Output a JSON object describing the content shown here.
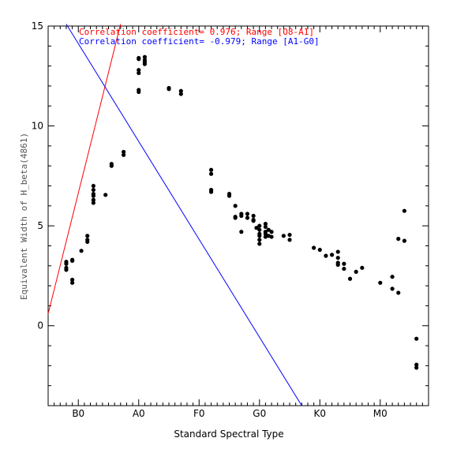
{
  "chart_data": {
    "type": "scatter",
    "xlabel": "Standard Spectral Type",
    "ylabel": "Equivalent Width of H_beta(4861)",
    "x_ticks": [
      "B0",
      "A0",
      "F0",
      "G0",
      "K0",
      "M0"
    ],
    "y_ticks": [
      "0",
      "5",
      "10",
      "15"
    ],
    "xlim": [
      -0.5,
      5.8
    ],
    "ylim": [
      -4,
      15
    ],
    "grid": false,
    "annotations": [
      {
        "text": "Correlation coefficient= 0.976; Range [O8-A1]",
        "color": "#ff0000"
      },
      {
        "text": "Correlation coefficient= -0.979; Range [A1-G0]",
        "color": "#0000ff"
      }
    ],
    "fit_lines": [
      {
        "color": "#ff0000",
        "points": [
          [
            -0.5,
            0.6
          ],
          [
            0.7,
            15.1
          ]
        ]
      },
      {
        "color": "#0000ff",
        "points": [
          [
            -0.2,
            15.1
          ],
          [
            3.7,
            -4.0
          ]
        ]
      }
    ],
    "points": [
      [
        -0.2,
        3.2
      ],
      [
        -0.2,
        3.1
      ],
      [
        -0.2,
        2.9
      ],
      [
        -0.2,
        2.8
      ],
      [
        -0.1,
        3.3
      ],
      [
        -0.1,
        3.25
      ],
      [
        -0.1,
        2.3
      ],
      [
        -0.1,
        2.15
      ],
      [
        0.05,
        3.75
      ],
      [
        0.15,
        4.5
      ],
      [
        0.15,
        4.3
      ],
      [
        0.15,
        4.2
      ],
      [
        0.25,
        7.0
      ],
      [
        0.25,
        6.8
      ],
      [
        0.25,
        6.6
      ],
      [
        0.25,
        6.5
      ],
      [
        0.25,
        6.3
      ],
      [
        0.25,
        6.15
      ],
      [
        0.45,
        6.55
      ],
      [
        0.55,
        8.1
      ],
      [
        0.55,
        8.0
      ],
      [
        0.75,
        8.7
      ],
      [
        0.75,
        8.55
      ],
      [
        1.0,
        13.4
      ],
      [
        1.0,
        13.35
      ],
      [
        1.0,
        12.8
      ],
      [
        1.0,
        12.65
      ],
      [
        1.0,
        11.8
      ],
      [
        1.0,
        11.7
      ],
      [
        1.1,
        13.45
      ],
      [
        1.1,
        13.3
      ],
      [
        1.1,
        13.2
      ],
      [
        1.1,
        13.1
      ],
      [
        1.5,
        11.9
      ],
      [
        1.5,
        11.85
      ],
      [
        1.7,
        11.75
      ],
      [
        1.7,
        11.6
      ],
      [
        2.2,
        7.8
      ],
      [
        2.2,
        7.6
      ],
      [
        2.2,
        6.8
      ],
      [
        2.2,
        6.7
      ],
      [
        2.5,
        6.6
      ],
      [
        2.5,
        6.5
      ],
      [
        2.6,
        6.0
      ],
      [
        2.6,
        5.45
      ],
      [
        2.6,
        5.4
      ],
      [
        2.7,
        5.6
      ],
      [
        2.7,
        5.5
      ],
      [
        2.7,
        4.7
      ],
      [
        2.8,
        5.6
      ],
      [
        2.8,
        5.4
      ],
      [
        2.9,
        5.5
      ],
      [
        2.9,
        5.3
      ],
      [
        2.9,
        5.25
      ],
      [
        2.95,
        4.9
      ],
      [
        3.0,
        5.0
      ],
      [
        3.0,
        4.8
      ],
      [
        3.0,
        4.6
      ],
      [
        3.0,
        4.5
      ],
      [
        3.0,
        4.3
      ],
      [
        3.0,
        4.1
      ],
      [
        3.1,
        5.1
      ],
      [
        3.1,
        4.95
      ],
      [
        3.1,
        4.7
      ],
      [
        3.1,
        4.6
      ],
      [
        3.1,
        4.45
      ],
      [
        3.15,
        4.8
      ],
      [
        3.15,
        4.5
      ],
      [
        3.2,
        4.7
      ],
      [
        3.2,
        4.45
      ],
      [
        3.4,
        4.5
      ],
      [
        3.5,
        4.55
      ],
      [
        3.5,
        4.3
      ],
      [
        3.9,
        3.9
      ],
      [
        4.0,
        3.8
      ],
      [
        4.1,
        3.5
      ],
      [
        4.2,
        3.55
      ],
      [
        4.3,
        3.7
      ],
      [
        4.3,
        3.4
      ],
      [
        4.3,
        3.15
      ],
      [
        4.3,
        3.05
      ],
      [
        4.4,
        3.1
      ],
      [
        4.4,
        2.85
      ],
      [
        4.5,
        2.35
      ],
      [
        4.6,
        2.7
      ],
      [
        4.7,
        2.9
      ],
      [
        5.0,
        2.15
      ],
      [
        5.2,
        2.45
      ],
      [
        5.2,
        1.85
      ],
      [
        5.3,
        1.65
      ],
      [
        5.3,
        4.35
      ],
      [
        5.4,
        5.75
      ],
      [
        5.4,
        4.25
      ],
      [
        5.6,
        -0.65
      ],
      [
        5.6,
        -1.95
      ],
      [
        5.6,
        -2.1
      ]
    ]
  }
}
